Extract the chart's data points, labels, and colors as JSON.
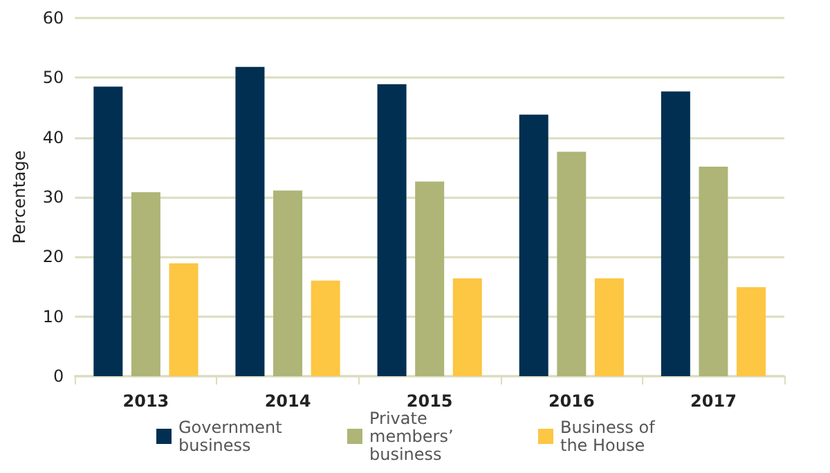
{
  "chart_data": {
    "type": "bar",
    "ylabel": "Percentage",
    "categories": [
      "2013",
      "2014",
      "2015",
      "2016",
      "2017"
    ],
    "series": [
      {
        "name": "Government business",
        "color": "#002f52",
        "values": [
          48.5,
          51.8,
          48.9,
          43.8,
          47.7
        ]
      },
      {
        "name": "Private members’ business",
        "color": "#aeb577",
        "values": [
          30.8,
          31.1,
          32.6,
          37.6,
          35.1
        ]
      },
      {
        "name": "Business of the House",
        "color": "#fdc643",
        "values": [
          18.9,
          16.0,
          16.4,
          16.4,
          14.9
        ]
      }
    ],
    "ylim": [
      0,
      60
    ],
    "yticks": [
      0,
      10,
      20,
      30,
      40,
      50,
      60
    ],
    "grid": "y",
    "legend": "bottom"
  }
}
